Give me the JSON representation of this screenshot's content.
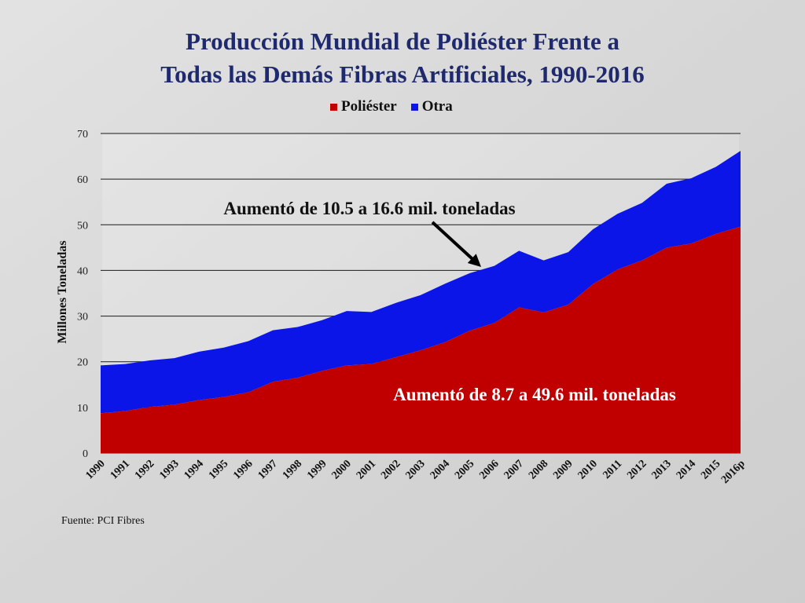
{
  "chart_data": {
    "type": "area",
    "title": "Producción Mundial de Poliéster Frente a Todas las Demás Fibras Artificiales, 1990-2016",
    "title_lines": [
      "Producción Mundial de Poliéster Frente a",
      "Todas las Demás Fibras Artificiales, 1990-2016"
    ],
    "ylabel": "Millones Toneladas",
    "xlabel": "",
    "ylim": [
      0,
      70
    ],
    "yticks": [
      0,
      10,
      20,
      30,
      40,
      50,
      60,
      70
    ],
    "grid": true,
    "stacked": true,
    "legend_position": "top",
    "categories": [
      "1990",
      "1991",
      "1992",
      "1993",
      "1994",
      "1995",
      "1996",
      "1997",
      "1998",
      "1999",
      "2000",
      "2001",
      "2002",
      "2003",
      "2004",
      "2005",
      "2006",
      "2007",
      "2008",
      "2009",
      "2010",
      "2011",
      "2012",
      "2013",
      "2014",
      "2015",
      "2016p"
    ],
    "series": [
      {
        "name": "Poliéster",
        "color": "#c00000",
        "values": [
          8.7,
          9.2,
          10.1,
          10.6,
          11.6,
          12.3,
          13.3,
          15.6,
          16.5,
          18.0,
          19.2,
          19.5,
          21.0,
          22.5,
          24.3,
          26.8,
          28.5,
          31.9,
          30.8,
          32.5,
          37.0,
          40.2,
          42.2,
          45.0,
          45.9,
          48.0,
          49.6
        ]
      },
      {
        "name": "Otra",
        "color": "#0b15e8",
        "values": [
          10.5,
          10.3,
          10.2,
          10.2,
          10.6,
          10.8,
          11.2,
          11.3,
          11.1,
          11.1,
          11.9,
          11.4,
          11.9,
          12.1,
          12.8,
          12.6,
          12.5,
          12.4,
          11.4,
          11.5,
          12.0,
          12.2,
          12.6,
          14.0,
          14.3,
          14.7,
          16.6
        ]
      }
    ],
    "annotations": [
      {
        "text": "Aumentó de 10.5 a 16.6 mil. toneladas"
      },
      {
        "text": "Aumentó de 8.7 a 49.6 mil. toneladas"
      }
    ],
    "source": "Fuente: PCI Fibres"
  }
}
